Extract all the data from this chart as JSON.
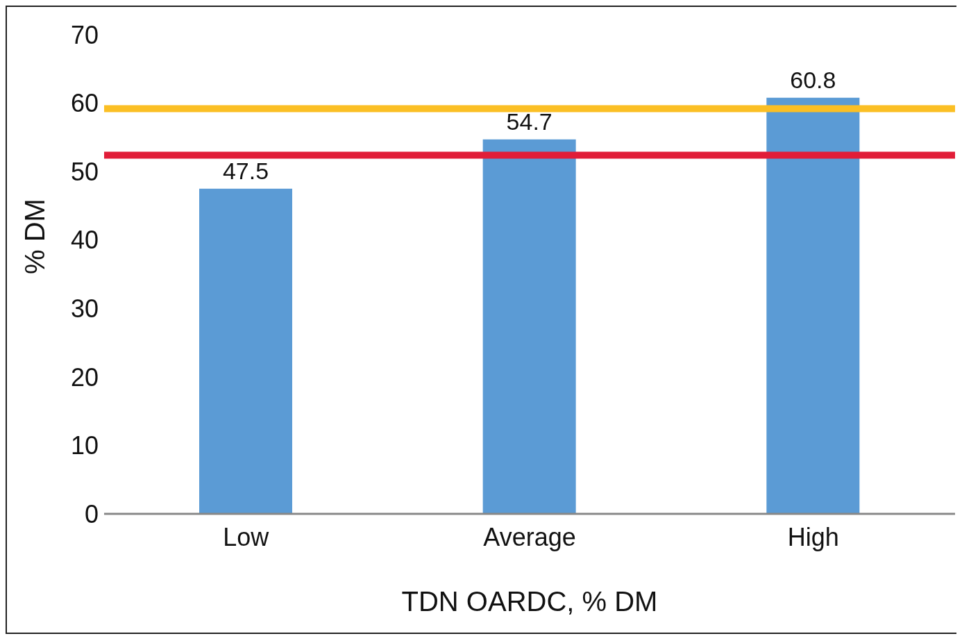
{
  "chart_data": {
    "type": "bar",
    "xlabel": "TDN OARDC, % DM",
    "ylabel": "% DM",
    "categories": [
      "Low",
      "Average",
      "High"
    ],
    "values": [
      47.5,
      54.7,
      60.8
    ],
    "color": "#5b9bd5",
    "ylim": [
      0,
      70
    ],
    "yticks": [
      0,
      10,
      20,
      30,
      40,
      50,
      60,
      70
    ],
    "grid": false,
    "data_labels": true,
    "ref_lines": [
      {
        "axis": "y",
        "value": 59.2,
        "color": "#fbbf24"
      },
      {
        "axis": "y",
        "value": 52.4,
        "color": "#e11d38"
      }
    ]
  }
}
